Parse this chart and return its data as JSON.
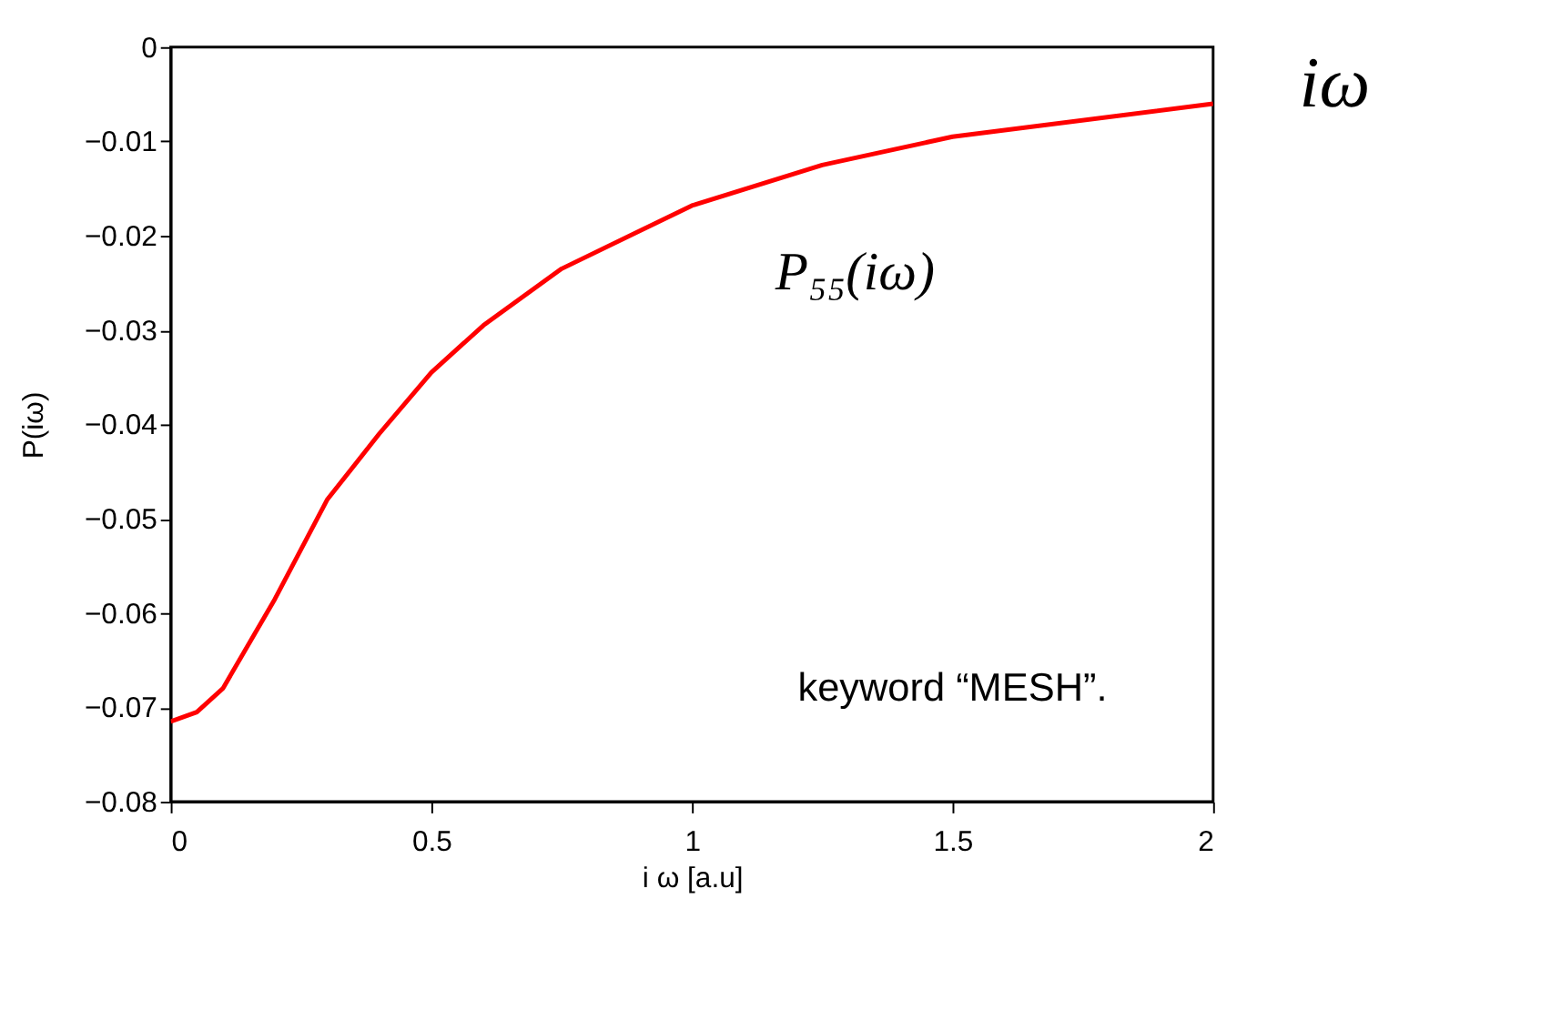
{
  "chart_data": {
    "type": "line",
    "xlabel": "i ω [a.u]",
    "ylabel": "P(iω)",
    "x": [
      0,
      0.05,
      0.1,
      0.2,
      0.3,
      0.4,
      0.5,
      0.6,
      0.75,
      1,
      1.25,
      1.5,
      2
    ],
    "series": [
      {
        "color": "#ff0000",
        "values": [
          -0.0715,
          -0.0705,
          -0.068,
          -0.0585,
          -0.048,
          -0.041,
          -0.0345,
          -0.0295,
          -0.0235,
          -0.0168,
          -0.0125,
          -0.0095,
          -0.006
        ]
      }
    ],
    "xlim": [
      0,
      2
    ],
    "ylim": [
      -0.08,
      0
    ],
    "xticks": [
      0,
      0.5,
      1,
      1.5,
      2
    ],
    "yticks": [
      -0.08,
      -0.07,
      -0.06,
      -0.05,
      -0.04,
      -0.03,
      -0.02,
      -0.01,
      0
    ],
    "grid": false,
    "marker": "none",
    "line_style": "solid",
    "annotations": [
      "P₅₅(iω)",
      "keyword “MESH”.",
      "iω"
    ]
  }
}
